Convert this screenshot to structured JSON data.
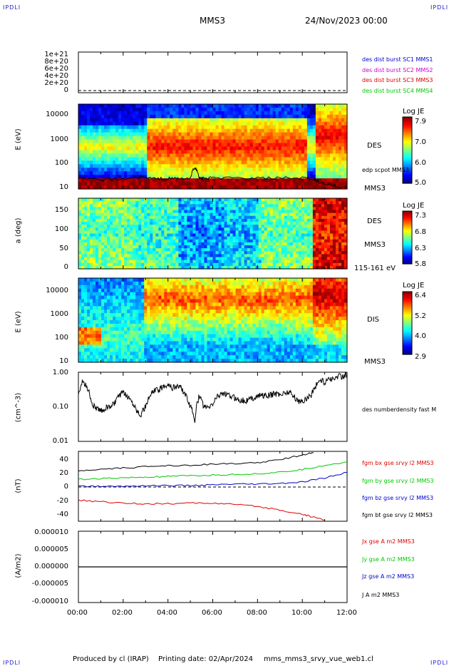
{
  "header": {
    "corner_label": "IPDLI",
    "mission": "MMS3",
    "datetime": "24/Nov/2023 00:00"
  },
  "footer": {
    "produced_by": "Produced by cl (IRAP)",
    "printing_date": "Printing date: 02/Apr/2024",
    "file_name": "mms_mms3_srvy_vue_web1.cl"
  },
  "colors": {
    "black": "#000000",
    "green": "#00c800",
    "blue": "#0000cc",
    "red": "#dd0000",
    "magenta": "#cc00cc"
  },
  "panels": {
    "p1": {
      "yticks": [
        "1e+21",
        "8e+20",
        "6e+20",
        "4e+20",
        "2e+20",
        "0"
      ],
      "legend": [
        {
          "text": "des dist burst SC1 MMS1",
          "color": "#0000cc"
        },
        {
          "text": "des dist burst SC2 MMS2",
          "color": "#cc00cc"
        },
        {
          "text": "des dist burst SC3 MMS3",
          "color": "#dd0000"
        },
        {
          "text": "des dist burst SC4 MMS4",
          "color": "#00c800"
        }
      ]
    },
    "p2": {
      "ylabel": "E (eV)",
      "yticks": [
        "10000",
        "1000",
        "100",
        "10"
      ],
      "species": "DES",
      "overlay_label": "edp scpot MMS3",
      "sc_label": "MMS3",
      "cb_title": "Log JE",
      "cb_ticks": [
        "7.9",
        "7.0",
        "6.0",
        "5.0"
      ]
    },
    "p3": {
      "ylabel": "a (deg)",
      "yticks": [
        "150",
        "100",
        "50",
        "0"
      ],
      "species": "DES",
      "sc_label": "MMS3",
      "energy_range": "115-161 eV",
      "cb_title": "Log JE",
      "cb_ticks": [
        "7.3",
        "6.8",
        "6.3",
        "5.8"
      ]
    },
    "p4": {
      "ylabel": "E (eV)",
      "yticks": [
        "10000",
        "1000",
        "100",
        "10"
      ],
      "species": "DIS",
      "sc_label": "MMS3",
      "cb_title": "Log JE",
      "cb_ticks": [
        "6.4",
        "5.2",
        "4.0",
        "2.9"
      ]
    },
    "p5": {
      "ylabel": "(cm^-3)",
      "yticks": [
        "1.00",
        "0.10",
        "0.01"
      ],
      "legend": [
        {
          "text": "des numberdensity fast M",
          "color": "#000000"
        }
      ]
    },
    "p6": {
      "ylabel": "(nT)",
      "yticks": [
        "40",
        "20",
        "0",
        "-20",
        "-40"
      ],
      "legend": [
        {
          "text": "fgm bx gse srvy l2 MMS3",
          "color": "#dd0000"
        },
        {
          "text": "fgm by gse srvy l2 MMS3",
          "color": "#00c800"
        },
        {
          "text": "fgm bz gse srvy l2 MMS3",
          "color": "#0000cc"
        },
        {
          "text": "fgm bt gse srvy l2 MMS3",
          "color": "#000000"
        }
      ]
    },
    "p7": {
      "ylabel": "(A/m2)",
      "yticks": [
        "0.000010",
        "0.000005",
        "0.000000",
        "-0.000005",
        "-0.000010"
      ],
      "legend": [
        {
          "text": "Jx gse A m2 MMS3",
          "color": "#dd0000"
        },
        {
          "text": "Jy gse A m2 MMS3",
          "color": "#00c800"
        },
        {
          "text": "Jz gse A m2 MMS3",
          "color": "#0000cc"
        },
        {
          "text": "J A m2 MMS3",
          "color": "#000000"
        }
      ]
    }
  },
  "xaxis": {
    "ticks": [
      "00:00",
      "02:00",
      "04:00",
      "06:00",
      "08:00",
      "10:00",
      "12:00"
    ]
  },
  "chart_data": [
    {
      "type": "line",
      "panel": "p1",
      "ylim": [
        0,
        1e+21
      ],
      "series": [
        {
          "name": "des dist burst SC1 MMS1",
          "x": [
            0,
            12
          ],
          "y": [
            0,
            0
          ]
        },
        {
          "name": "des dist burst SC2 MMS2",
          "x": [
            0,
            12
          ],
          "y": [
            0,
            0
          ]
        },
        {
          "name": "des dist burst SC3 MMS3",
          "x": [
            0,
            12
          ],
          "y": [
            0,
            0
          ]
        },
        {
          "name": "des dist burst SC4 MMS4",
          "x": [
            0,
            12
          ],
          "y": [
            0,
            0
          ]
        }
      ]
    },
    {
      "type": "heatmap",
      "panel": "p2",
      "scale": "log",
      "ylim": [
        10,
        30000
      ],
      "zlim": [
        5.0,
        7.9
      ],
      "description_series": "edp scpot MMS3",
      "scpot_x": [
        0,
        1,
        2,
        2.9,
        3.5,
        4,
        4.5,
        5,
        5.2,
        5.4,
        5.6,
        6,
        7,
        8,
        9,
        10,
        10.5,
        10.7,
        11,
        11.5,
        12
      ],
      "scpot_y": [
        25,
        24,
        26,
        30,
        26,
        27,
        27,
        26,
        80,
        28,
        27,
        28,
        28,
        27,
        28,
        28,
        25,
        20,
        16,
        13,
        12
      ]
    },
    {
      "type": "heatmap",
      "panel": "p3",
      "ylim": [
        0,
        180
      ],
      "zlim": [
        5.8,
        7.3
      ]
    },
    {
      "type": "heatmap",
      "panel": "p4",
      "scale": "log",
      "ylim": [
        10,
        30000
      ],
      "zlim": [
        2.9,
        6.4
      ]
    },
    {
      "type": "line",
      "panel": "p5",
      "scale": "log",
      "ylim": [
        0.01,
        1.0
      ],
      "series": [
        {
          "name": "des numberdensity fast M",
          "x": [
            0,
            0.2,
            0.4,
            0.6,
            0.8,
            1.0,
            1.2,
            1.4,
            1.6,
            1.8,
            2.0,
            2.2,
            2.4,
            2.6,
            2.8,
            3.0,
            3.2,
            3.4,
            3.6,
            3.8,
            4.0,
            4.2,
            4.4,
            4.6,
            4.8,
            5.0,
            5.2,
            5.4,
            5.6,
            5.8,
            6.0,
            6.2,
            6.4,
            6.6,
            6.8,
            7.0,
            7.2,
            7.4,
            7.6,
            7.8,
            8.0,
            8.2,
            8.4,
            8.6,
            8.8,
            9.0,
            9.2,
            9.4,
            9.6,
            9.8,
            10.0,
            10.2,
            10.4,
            10.6,
            10.8,
            11.0,
            11.2,
            11.4,
            11.6,
            11.8,
            12.0
          ],
          "y": [
            0.2,
            0.55,
            0.35,
            0.12,
            0.09,
            0.075,
            0.09,
            0.1,
            0.12,
            0.2,
            0.25,
            0.2,
            0.14,
            0.08,
            0.06,
            0.1,
            0.2,
            0.3,
            0.3,
            0.4,
            0.45,
            0.35,
            0.4,
            0.35,
            0.2,
            0.1,
            0.04,
            0.2,
            0.1,
            0.09,
            0.12,
            0.2,
            0.25,
            0.22,
            0.2,
            0.18,
            0.16,
            0.15,
            0.16,
            0.18,
            0.2,
            0.22,
            0.2,
            0.22,
            0.24,
            0.23,
            0.25,
            0.28,
            0.2,
            0.15,
            0.14,
            0.18,
            0.22,
            0.4,
            0.6,
            0.5,
            0.7,
            0.6,
            0.8,
            0.75,
            0.85
          ]
        }
      ]
    },
    {
      "type": "line",
      "panel": "p6",
      "ylim": [
        -50,
        50
      ],
      "series": [
        {
          "name": "fgm bt gse srvy l2 MMS3",
          "x": [
            0,
            1,
            2,
            3,
            4,
            5,
            6,
            7,
            8,
            9,
            10,
            10.5
          ],
          "y": [
            22,
            24,
            26,
            28,
            30,
            30,
            32,
            32,
            34,
            38,
            45,
            48
          ]
        },
        {
          "name": "fgm by gse srvy l2 MMS3",
          "x": [
            0,
            1,
            2,
            3,
            4,
            5,
            6,
            7,
            8,
            9,
            10,
            11,
            12
          ],
          "y": [
            10,
            11,
            12,
            13,
            14,
            15,
            16,
            17,
            18,
            20,
            24,
            30,
            35
          ]
        },
        {
          "name": "fgm bz gse srvy l2 MMS3",
          "x": [
            0,
            1,
            2,
            3,
            4,
            5,
            6,
            7,
            8,
            9,
            10,
            11,
            12
          ],
          "y": [
            0,
            0,
            0,
            1,
            1,
            1,
            2,
            3,
            3,
            4,
            6,
            12,
            20
          ]
        },
        {
          "name": "fgm bx gse srvy l2 MMS3",
          "x": [
            0,
            1,
            2,
            3,
            4,
            5,
            6,
            7,
            8,
            9,
            10,
            10.5,
            11
          ],
          "y": [
            -20,
            -22,
            -24,
            -25,
            -25,
            -24,
            -24,
            -26,
            -29,
            -34,
            -40,
            -44,
            -48
          ]
        }
      ]
    },
    {
      "type": "line",
      "panel": "p7",
      "ylim": [
        -1e-05,
        1e-05
      ],
      "series": [
        {
          "name": "Jx gse A m2 MMS3",
          "x": [
            0,
            12
          ],
          "y": [
            0,
            0
          ]
        },
        {
          "name": "Jy gse A m2 MMS3",
          "x": [
            0,
            12
          ],
          "y": [
            0,
            0
          ]
        },
        {
          "name": "Jz gse A m2 MMS3",
          "x": [
            0,
            12
          ],
          "y": [
            0,
            0
          ]
        },
        {
          "name": "J A m2 MMS3",
          "x": [
            0,
            12
          ],
          "y": [
            0,
            0
          ]
        }
      ]
    }
  ]
}
